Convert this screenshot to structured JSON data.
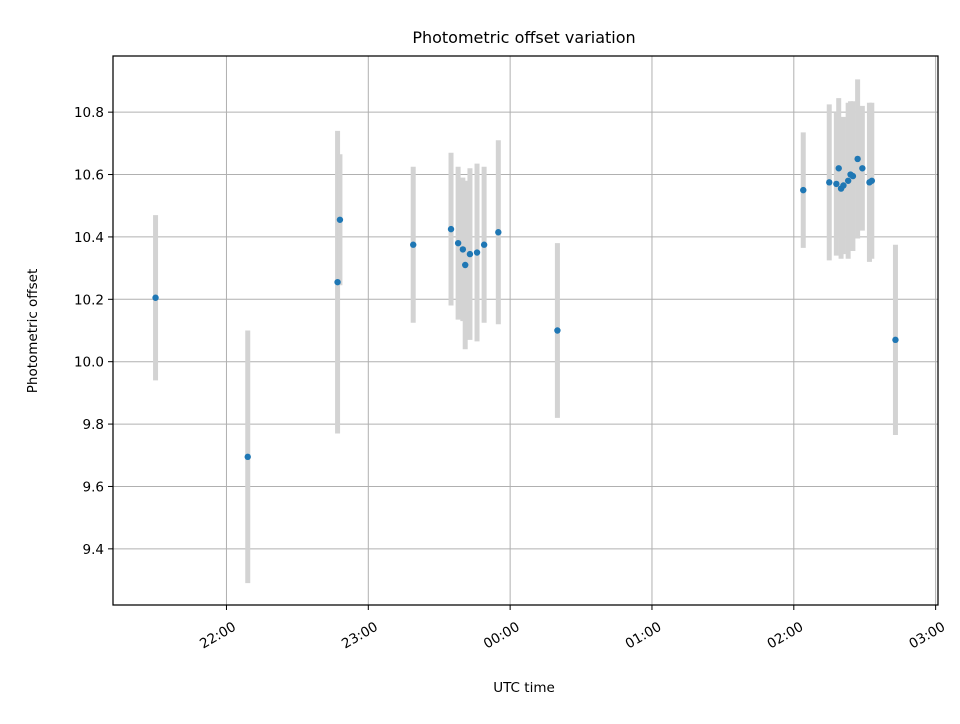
{
  "chart_data": {
    "type": "scatter",
    "title": "Photometric offset variation",
    "xlabel": "UTC time",
    "ylabel": "Photometric offset",
    "x_axis": "time (hours after 21:00 UTC); tick labels printed as HH:MM",
    "xlim": [
      "21:12",
      "03:01"
    ],
    "ylim": [
      9.22,
      10.98
    ],
    "grid": true,
    "x_ticks": [
      "22:00",
      "23:00",
      "00:00",
      "01:00",
      "02:00",
      "03:00"
    ],
    "y_ticks": [
      "9.4",
      "9.6",
      "9.8",
      "10.0",
      "10.2",
      "10.4",
      "10.6",
      "10.8"
    ],
    "colors": {
      "points": "#1f77b4",
      "errorbars": "#d3d3d3",
      "grid": "#b0b0b0"
    },
    "series": [
      {
        "x": [
          "21:30",
          "22:09",
          "22:47",
          "22:48",
          "23:19",
          "23:35",
          "23:38",
          "23:40",
          "23:41",
          "23:43",
          "23:46",
          "23:49",
          "23:55",
          "00:20",
          "02:04",
          "02:15",
          "02:18",
          "02:19",
          "02:20",
          "02:21",
          "02:23",
          "02:24",
          "02:25",
          "02:27",
          "02:29",
          "02:32",
          "02:33",
          "02:43"
        ],
        "y": [
          10.205,
          9.695,
          10.255,
          10.455,
          10.375,
          10.425,
          10.38,
          10.36,
          10.31,
          10.345,
          10.35,
          10.375,
          10.415,
          10.1,
          10.55,
          10.575,
          10.57,
          10.62,
          10.555,
          10.565,
          10.58,
          10.6,
          10.595,
          10.65,
          10.62,
          10.575,
          10.58,
          10.07
        ],
        "yerr": [
          0.265,
          0.405,
          0.485,
          0.21,
          0.25,
          0.245,
          0.245,
          0.23,
          0.27,
          0.275,
          0.285,
          0.25,
          0.295,
          0.28,
          0.185,
          0.25,
          0.23,
          0.225,
          0.225,
          0.22,
          0.25,
          0.235,
          0.24,
          0.255,
          0.2,
          0.255,
          0.25,
          0.305
        ]
      }
    ]
  }
}
